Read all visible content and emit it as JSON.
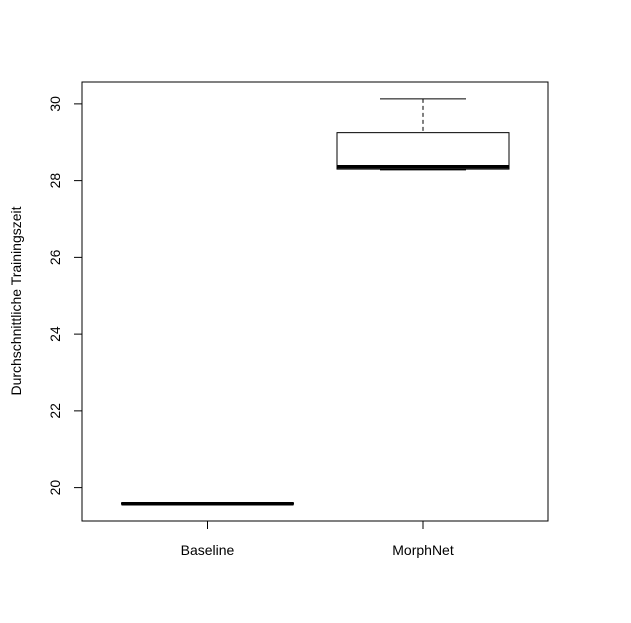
{
  "chart_data": {
    "type": "boxplot",
    "title": "",
    "xlabel": "",
    "ylabel": "Durchschnittliche Trainingszeit",
    "categories": [
      "Baseline",
      "MorphNet"
    ],
    "series": [
      {
        "name": "Baseline",
        "whisker_low": 19.57,
        "q1": 19.57,
        "median": 19.58,
        "q3": 19.6,
        "whisker_high": 19.61
      },
      {
        "name": "MorphNet",
        "whisker_low": 28.28,
        "q1": 28.3,
        "median": 28.36,
        "q3": 29.25,
        "whisker_high": 30.13
      }
    ],
    "yticks": [
      20,
      22,
      24,
      26,
      28,
      30
    ],
    "ytick_labels": [
      "20",
      "22",
      "24",
      "26",
      "28",
      "30"
    ],
    "ylim": [
      19.13,
      30.57
    ],
    "grid": false,
    "legend": "none"
  }
}
